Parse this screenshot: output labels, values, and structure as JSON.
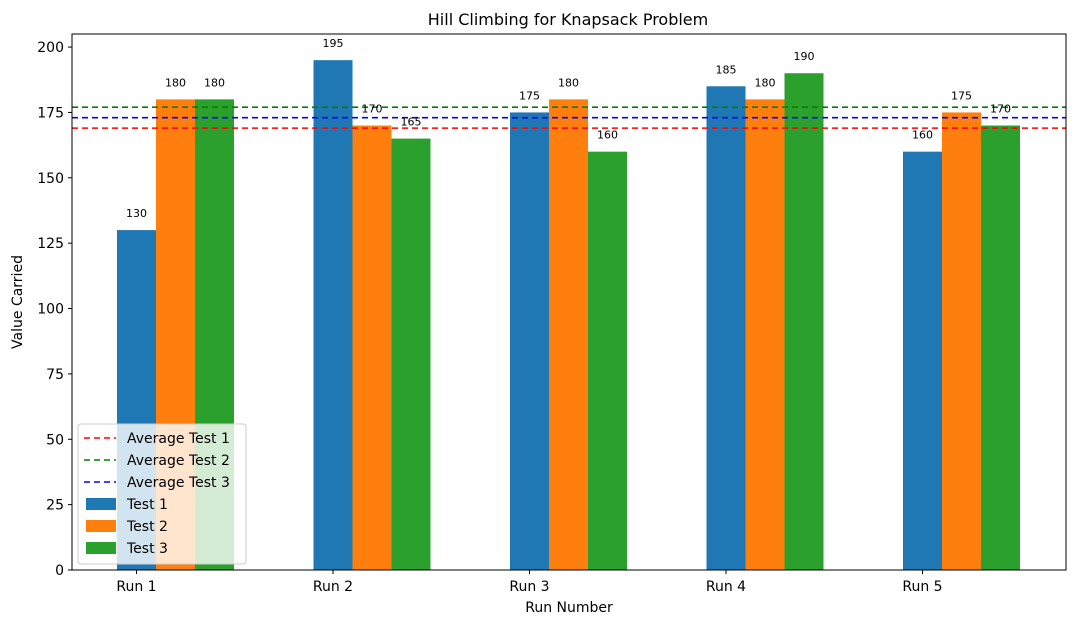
{
  "chart_data": {
    "type": "bar",
    "title": "Hill Climbing for Knapsack Problem",
    "xlabel": "Run Number",
    "ylabel": "Value Carried",
    "categories": [
      "Run 1",
      "Run 2",
      "Run 3",
      "Run 4",
      "Run 5"
    ],
    "series": [
      {
        "name": "Test 1",
        "color": "#1f77b4",
        "values": [
          130,
          195,
          175,
          185,
          160
        ]
      },
      {
        "name": "Test 2",
        "color": "#ff7f0e",
        "values": [
          180,
          170,
          180,
          180,
          175
        ]
      },
      {
        "name": "Test 3",
        "color": "#2ca02c",
        "values": [
          180,
          165,
          160,
          190,
          170
        ]
      }
    ],
    "reference_lines": [
      {
        "name": "Average Test 1",
        "color": "#ff0000",
        "style": "dashed",
        "value": 169
      },
      {
        "name": "Average Test 2",
        "color": "#008000",
        "style": "dashed",
        "value": 177
      },
      {
        "name": "Average Test 3",
        "color": "#0000ff",
        "style": "dashed",
        "value": 173
      }
    ],
    "ylim": [
      0,
      205
    ],
    "yticks": [
      0,
      25,
      50,
      75,
      100,
      125,
      150,
      175,
      200
    ],
    "grid": false,
    "legend_position": "lower-left"
  }
}
